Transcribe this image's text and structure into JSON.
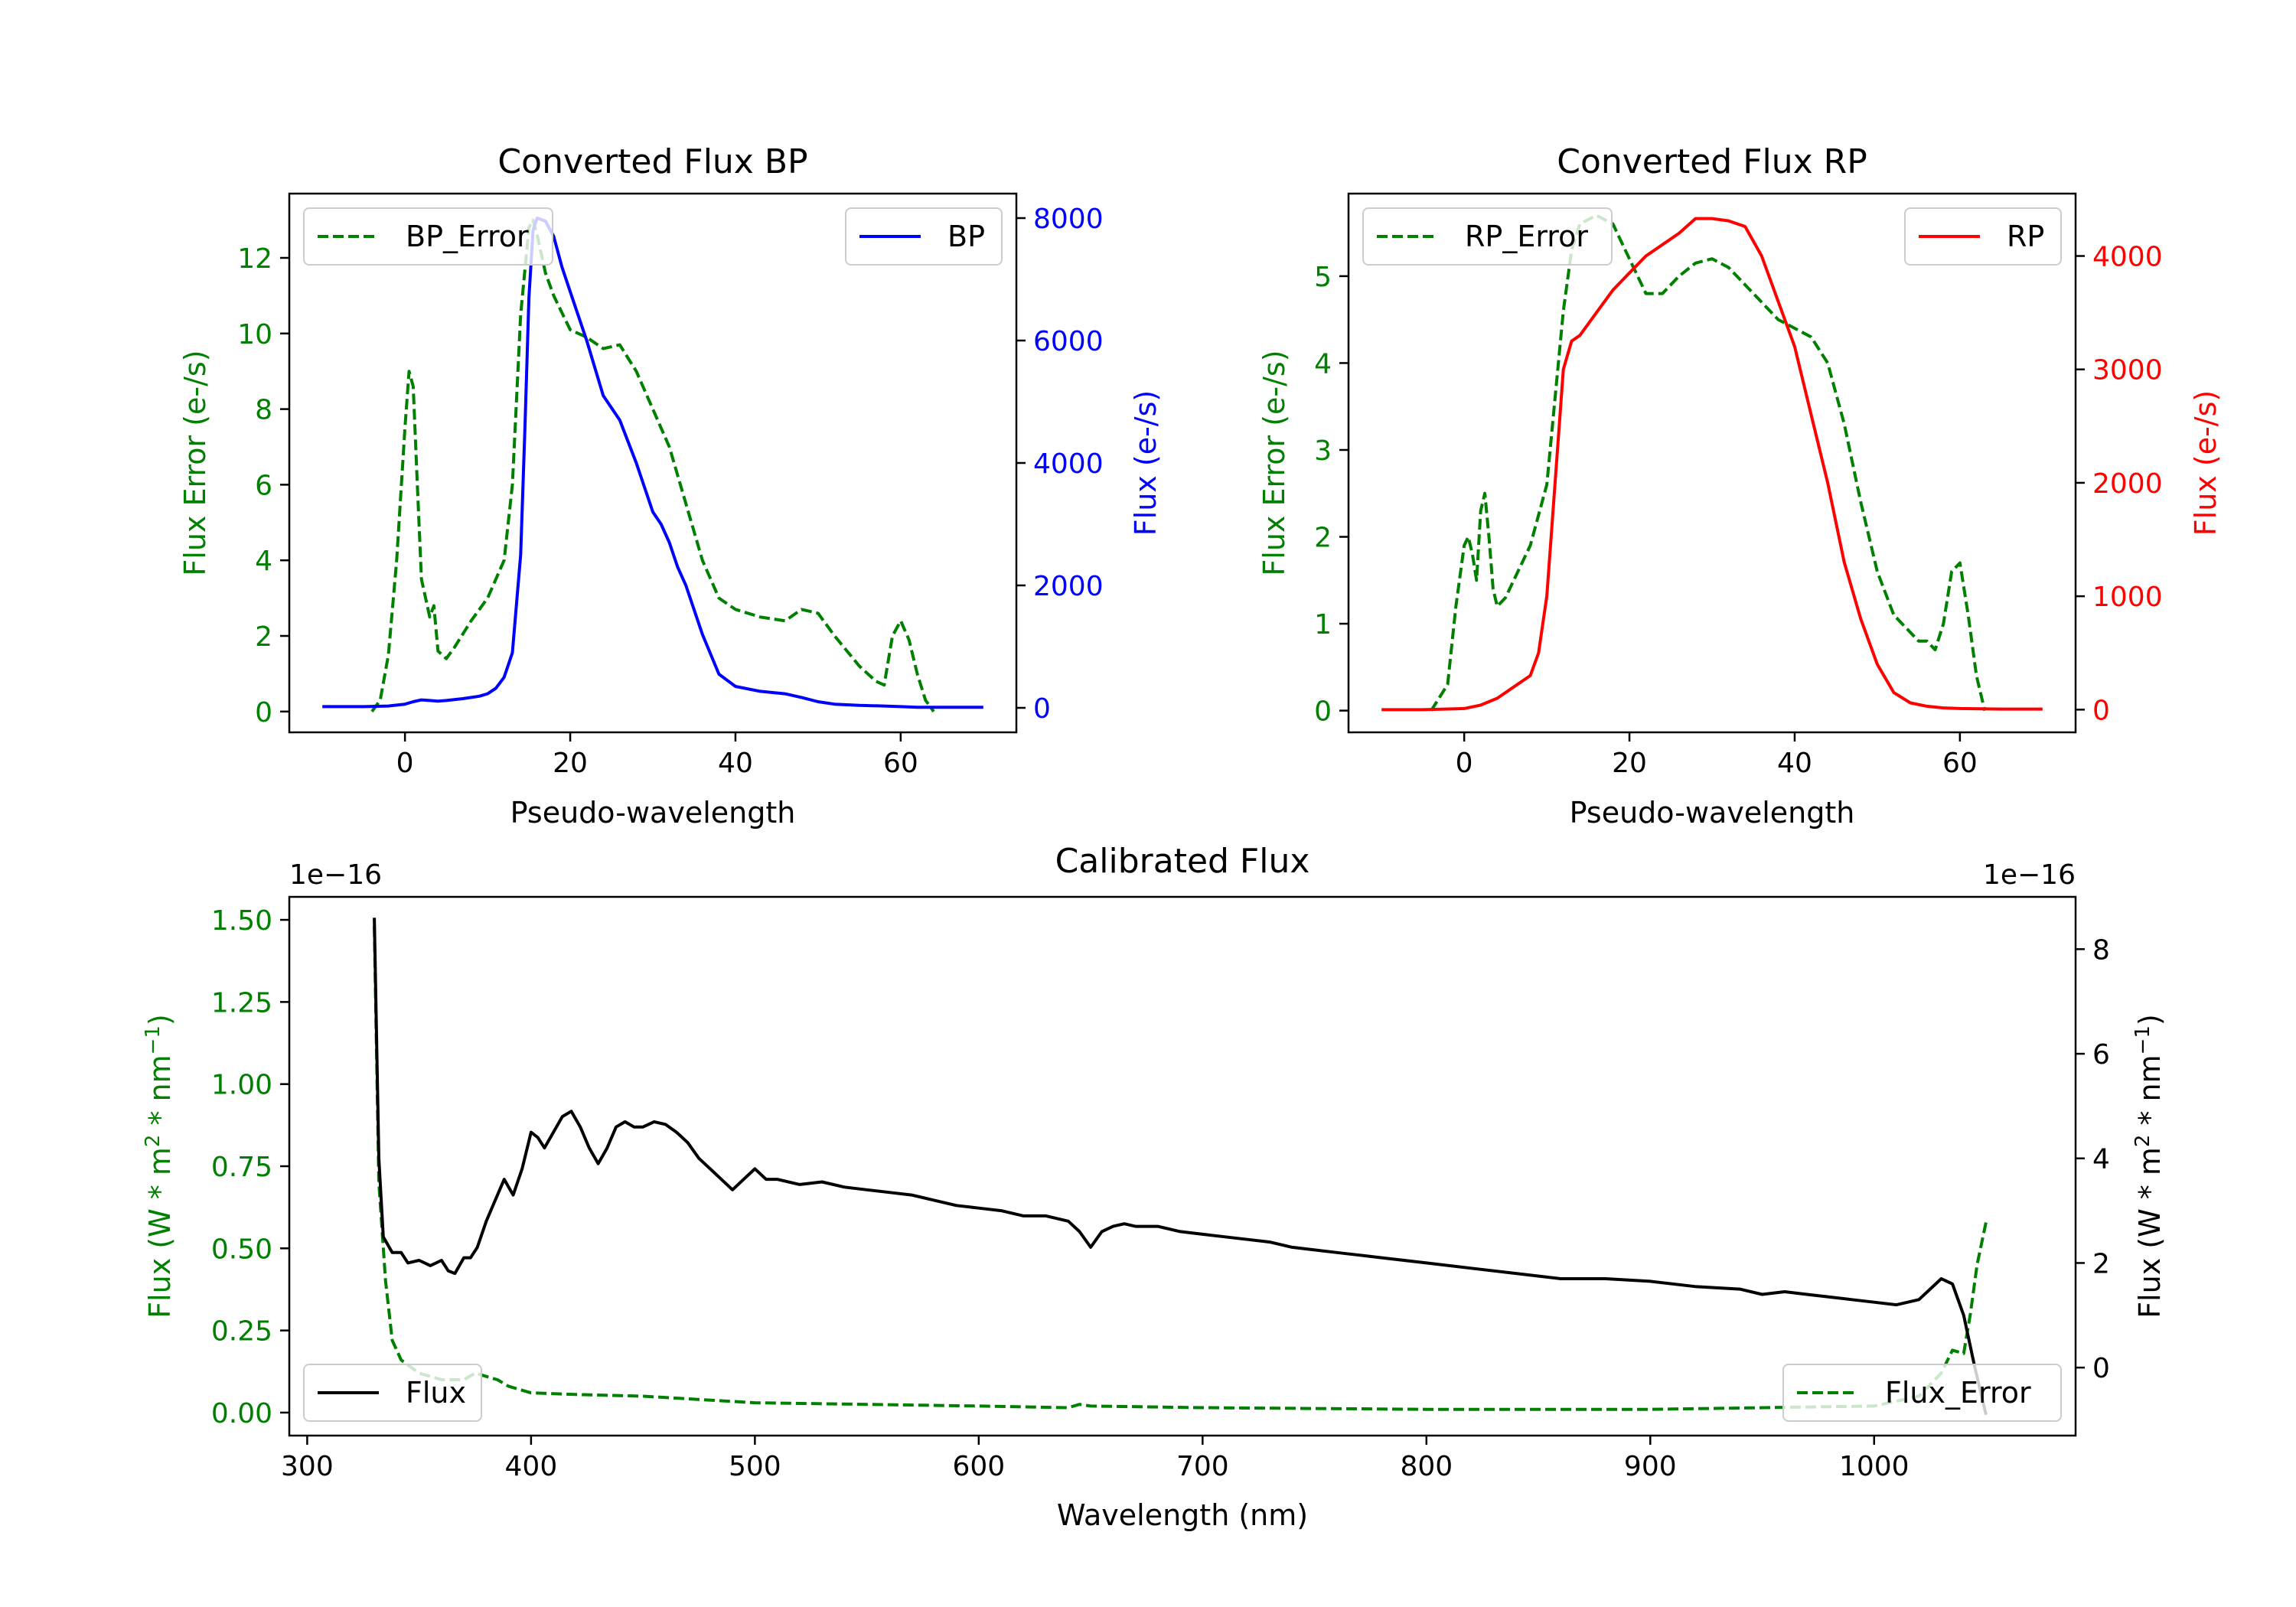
{
  "figure": {
    "background": "#ffffff"
  },
  "chart_data": [
    {
      "type": "line",
      "title": "Converted Flux BP",
      "xlabel": "Pseudo-wavelength",
      "ylabel_left": "Flux Error (e-/s)",
      "ylabel_right": "Flux (e-/s)",
      "xlim": [
        -14,
        74
      ],
      "ylim_left": [
        -0.55,
        13.7
      ],
      "ylim_right": [
        -400,
        8400
      ],
      "xticks": [
        0,
        20,
        40,
        60
      ],
      "yticks_left": [
        0,
        2,
        4,
        6,
        8,
        10,
        12
      ],
      "yticks_right": [
        0,
        2000,
        4000,
        6000,
        8000
      ],
      "left_color": "#008000",
      "right_color": "#0000ff",
      "legend_left": "top-left",
      "legend_right": "top-right",
      "series": [
        {
          "name": "BP_Error",
          "axis": "left",
          "color": "#008000",
          "style": "dashed",
          "x": [
            -4,
            -3,
            -2,
            -1,
            0,
            0.5,
            1,
            1.5,
            2,
            3,
            3.5,
            4,
            5,
            6,
            8,
            10,
            12,
            13,
            14,
            15,
            15.5,
            16,
            17,
            18,
            20,
            22,
            24,
            26,
            28,
            30,
            32,
            34,
            36,
            38,
            40,
            43,
            46,
            48,
            50,
            52,
            55,
            57,
            58,
            59,
            60,
            61,
            62,
            63,
            64
          ],
          "y": [
            0,
            0.3,
            1.5,
            4.0,
            7.5,
            9.0,
            8.6,
            6.0,
            3.5,
            2.5,
            2.8,
            1.6,
            1.4,
            1.7,
            2.4,
            3.0,
            4.0,
            6.0,
            10.5,
            12.8,
            13.0,
            12.6,
            11.6,
            11.0,
            10.1,
            9.9,
            9.6,
            9.7,
            9.0,
            8.0,
            7.0,
            5.5,
            4.0,
            3.0,
            2.7,
            2.5,
            2.4,
            2.7,
            2.6,
            2.0,
            1.2,
            0.8,
            0.7,
            2.0,
            2.4,
            1.9,
            1.0,
            0.3,
            0
          ]
        },
        {
          "name": "BP",
          "axis": "right",
          "color": "#0000ff",
          "style": "solid",
          "x": [
            -10,
            -5,
            -2,
            0,
            1,
            2,
            3,
            4,
            5,
            7,
            9,
            10,
            11,
            12,
            13,
            14,
            14.5,
            15,
            15.5,
            16,
            17,
            18,
            19,
            20,
            22,
            24,
            26,
            28,
            30,
            31,
            32,
            33,
            34,
            36,
            38,
            40,
            43,
            46,
            48,
            50,
            52,
            55,
            58,
            60,
            62,
            65,
            70
          ],
          "y": [
            20,
            20,
            30,
            60,
            100,
            130,
            120,
            110,
            120,
            150,
            190,
            230,
            320,
            500,
            900,
            2500,
            4500,
            6700,
            7800,
            8000,
            7950,
            7700,
            7200,
            6800,
            6000,
            5100,
            4700,
            4000,
            3200,
            3000,
            2700,
            2300,
            2000,
            1200,
            550,
            350,
            270,
            230,
            170,
            100,
            60,
            40,
            30,
            20,
            10,
            10,
            10
          ]
        }
      ]
    },
    {
      "type": "line",
      "title": "Converted Flux RP",
      "xlabel": "Pseudo-wavelength",
      "ylabel_left": "Flux Error (e-/s)",
      "ylabel_right": "Flux (e-/s)",
      "xlim": [
        -14,
        74
      ],
      "ylim_left": [
        -0.25,
        5.95
      ],
      "ylim_right": [
        -200,
        4550
      ],
      "xticks": [
        0,
        20,
        40,
        60
      ],
      "yticks_left": [
        0,
        1,
        2,
        3,
        4,
        5
      ],
      "yticks_right": [
        0,
        1000,
        2000,
        3000,
        4000
      ],
      "left_color": "#008000",
      "right_color": "#ff0000",
      "legend_left": "top-left",
      "legend_right": "top-right",
      "series": [
        {
          "name": "RP_Error",
          "axis": "left",
          "color": "#008000",
          "style": "dashed",
          "x": [
            -4,
            -2,
            -1,
            0,
            0.5,
            1,
            1.5,
            2,
            2.5,
            3,
            3.5,
            4,
            5,
            6,
            8,
            10,
            11,
            12,
            13,
            14,
            16,
            18,
            20,
            22,
            24,
            26,
            28,
            30,
            32,
            34,
            36,
            38,
            40,
            42,
            44,
            46,
            48,
            50,
            52,
            54,
            55,
            56,
            57,
            58,
            59,
            60,
            61,
            62,
            63
          ],
          "y": [
            0,
            0.3,
            1.2,
            1.9,
            2.0,
            1.8,
            1.5,
            2.3,
            2.5,
            2.0,
            1.4,
            1.2,
            1.3,
            1.5,
            1.9,
            2.6,
            3.6,
            4.6,
            5.3,
            5.6,
            5.7,
            5.6,
            5.2,
            4.8,
            4.8,
            5.0,
            5.15,
            5.2,
            5.1,
            4.9,
            4.7,
            4.5,
            4.4,
            4.3,
            4.0,
            3.3,
            2.4,
            1.6,
            1.1,
            0.9,
            0.8,
            0.8,
            0.7,
            1.0,
            1.6,
            1.7,
            1.1,
            0.4,
            0
          ]
        },
        {
          "name": "RP",
          "axis": "right",
          "color": "#ff0000",
          "style": "solid",
          "x": [
            -10,
            -5,
            0,
            2,
            4,
            6,
            8,
            9,
            10,
            11,
            12,
            13,
            14,
            16,
            18,
            20,
            22,
            24,
            26,
            28,
            30,
            32,
            34,
            36,
            38,
            40,
            42,
            44,
            46,
            48,
            50,
            52,
            54,
            56,
            58,
            60,
            65,
            70
          ],
          "y": [
            0,
            0,
            10,
            40,
            100,
            200,
            300,
            500,
            1000,
            2000,
            3000,
            3250,
            3300,
            3500,
            3700,
            3850,
            4000,
            4100,
            4200,
            4330,
            4330,
            4310,
            4260,
            4000,
            3600,
            3200,
            2600,
            2000,
            1300,
            800,
            400,
            150,
            60,
            30,
            15,
            10,
            5,
            5
          ]
        }
      ]
    },
    {
      "type": "line",
      "title": "Calibrated Flux",
      "xlabel": "Wavelength (nm)",
      "ylabel_left": "Flux (W * m$^2$ * nm$^{-1}$)",
      "ylabel_right": "Flux (W * m$^2$ * nm$^{-1}$)",
      "offset_left": "1e−16",
      "offset_right": "1e−16",
      "xlim": [
        292,
        1090
      ],
      "ylim_left": [
        -0.07,
        1.57
      ],
      "ylim_right": [
        -1.3,
        9.0
      ],
      "xticks": [
        300,
        400,
        500,
        600,
        700,
        800,
        900,
        1000
      ],
      "yticks_left": [
        0.0,
        0.25,
        0.5,
        0.75,
        1.0,
        1.25,
        1.5
      ],
      "yticks_left_labels": [
        "0.00",
        "0.25",
        "0.50",
        "0.75",
        "1.00",
        "1.25",
        "1.50"
      ],
      "yticks_right": [
        0,
        2,
        4,
        6,
        8
      ],
      "left_color": "#008000",
      "right_color": "#000000",
      "legend_left": "lower-left",
      "legend_right": "lower-right",
      "series": [
        {
          "name": "Flux_Error",
          "axis": "left",
          "color": "#008000",
          "style": "dashed",
          "x": [
            330,
            332,
            335,
            338,
            342,
            346,
            350,
            360,
            370,
            375,
            380,
            385,
            390,
            400,
            420,
            450,
            500,
            550,
            600,
            640,
            645,
            650,
            700,
            800,
            900,
            1000,
            1020,
            1030,
            1035,
            1040,
            1043,
            1046,
            1050
          ],
          "y": [
            1.48,
            0.7,
            0.4,
            0.22,
            0.16,
            0.14,
            0.12,
            0.1,
            0.1,
            0.12,
            0.11,
            0.1,
            0.08,
            0.06,
            0.055,
            0.05,
            0.03,
            0.025,
            0.02,
            0.015,
            0.025,
            0.02,
            0.015,
            0.01,
            0.01,
            0.02,
            0.05,
            0.12,
            0.19,
            0.18,
            0.3,
            0.45,
            0.58
          ]
        },
        {
          "name": "Flux",
          "axis": "right",
          "color": "#000000",
          "style": "solid",
          "x": [
            330,
            332,
            334,
            338,
            342,
            345,
            350,
            355,
            360,
            363,
            366,
            370,
            373,
            376,
            380,
            384,
            388,
            392,
            396,
            400,
            403,
            406,
            410,
            414,
            418,
            422,
            426,
            430,
            434,
            438,
            442,
            446,
            450,
            455,
            460,
            465,
            470,
            475,
            480,
            485,
            490,
            495,
            500,
            505,
            510,
            520,
            530,
            540,
            550,
            560,
            570,
            575,
            580,
            590,
            600,
            610,
            620,
            630,
            640,
            645,
            650,
            655,
            660,
            665,
            670,
            680,
            690,
            700,
            710,
            720,
            730,
            740,
            750,
            760,
            770,
            780,
            790,
            800,
            820,
            840,
            860,
            880,
            900,
            920,
            940,
            950,
            960,
            970,
            980,
            990,
            1000,
            1010,
            1020,
            1030,
            1035,
            1040,
            1045,
            1050
          ],
          "y": [
            8.6,
            4.0,
            2.5,
            2.2,
            2.2,
            2.0,
            2.05,
            1.95,
            2.05,
            1.85,
            1.8,
            2.1,
            2.1,
            2.3,
            2.8,
            3.2,
            3.6,
            3.3,
            3.8,
            4.5,
            4.4,
            4.2,
            4.5,
            4.8,
            4.9,
            4.6,
            4.2,
            3.9,
            4.2,
            4.6,
            4.7,
            4.6,
            4.6,
            4.7,
            4.65,
            4.5,
            4.3,
            4.0,
            3.8,
            3.6,
            3.4,
            3.6,
            3.8,
            3.6,
            3.6,
            3.5,
            3.55,
            3.45,
            3.4,
            3.35,
            3.3,
            3.25,
            3.2,
            3.1,
            3.05,
            3.0,
            2.9,
            2.9,
            2.8,
            2.6,
            2.3,
            2.6,
            2.7,
            2.75,
            2.7,
            2.7,
            2.6,
            2.55,
            2.5,
            2.45,
            2.4,
            2.3,
            2.25,
            2.2,
            2.15,
            2.1,
            2.05,
            2.0,
            1.9,
            1.8,
            1.7,
            1.7,
            1.65,
            1.55,
            1.5,
            1.4,
            1.45,
            1.4,
            1.35,
            1.3,
            1.25,
            1.2,
            1.3,
            1.7,
            1.6,
            1.0,
            0.0,
            -0.9
          ]
        }
      ]
    }
  ]
}
